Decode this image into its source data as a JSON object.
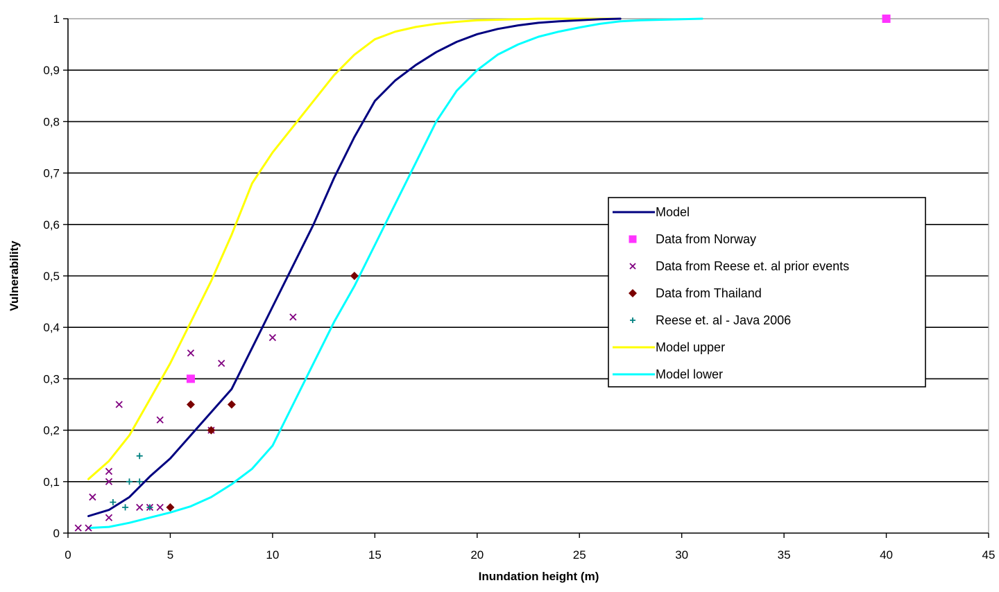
{
  "chart_data": {
    "type": "line",
    "title": "",
    "xlabel": "Inundation height (m)",
    "ylabel": "Vulnerability",
    "xlim": [
      0,
      45
    ],
    "ylim": [
      0,
      1
    ],
    "x_ticks": [
      0,
      5,
      10,
      15,
      20,
      25,
      30,
      35,
      40,
      45
    ],
    "x_tick_labels": [
      "0",
      "5",
      "10",
      "15",
      "20",
      "25",
      "30",
      "35",
      "40",
      "45"
    ],
    "y_ticks": [
      0,
      0.1,
      0.2,
      0.3,
      0.4,
      0.5,
      0.6,
      0.7,
      0.8,
      0.9,
      1
    ],
    "y_tick_labels": [
      "0",
      "0,1",
      "0,2",
      "0,3",
      "0,4",
      "0,5",
      "0,6",
      "0,7",
      "0,8",
      "0,9",
      "1"
    ],
    "grid": "horizontal",
    "legend_position": "right",
    "series": [
      {
        "name": "Model",
        "kind": "line",
        "color": "#000080",
        "x": [
          1,
          2,
          3,
          4,
          5,
          6,
          7,
          8,
          9,
          10,
          11,
          12,
          13,
          14,
          15,
          16,
          17,
          18,
          19,
          20,
          21,
          22,
          23,
          24,
          25,
          26,
          27
        ],
        "y": [
          0.033,
          0.045,
          0.07,
          0.11,
          0.145,
          0.19,
          0.235,
          0.28,
          0.36,
          0.44,
          0.52,
          0.6,
          0.69,
          0.77,
          0.84,
          0.88,
          0.91,
          0.935,
          0.955,
          0.97,
          0.98,
          0.987,
          0.992,
          0.995,
          0.997,
          0.999,
          1.0
        ]
      },
      {
        "name": "Model upper",
        "kind": "line",
        "color": "#ffff00",
        "x": [
          1,
          2,
          3,
          4,
          5,
          6,
          7,
          8,
          9,
          10,
          11,
          12,
          13,
          14,
          15,
          16,
          17,
          18,
          19,
          20,
          21,
          22,
          23,
          24,
          27
        ],
        "y": [
          0.105,
          0.14,
          0.19,
          0.26,
          0.33,
          0.41,
          0.49,
          0.58,
          0.68,
          0.74,
          0.79,
          0.84,
          0.89,
          0.93,
          0.96,
          0.975,
          0.984,
          0.99,
          0.994,
          0.997,
          0.998,
          0.999,
          1.0,
          1.0,
          1.0
        ]
      },
      {
        "name": "Model lower",
        "kind": "line",
        "color": "#00ffff",
        "x": [
          1,
          2,
          3,
          4,
          5,
          6,
          7,
          8,
          9,
          10,
          11,
          12,
          13,
          14,
          15,
          16,
          17,
          18,
          19,
          20,
          21,
          22,
          23,
          24,
          25,
          26,
          27,
          28,
          30,
          31
        ],
        "y": [
          0.01,
          0.012,
          0.02,
          0.03,
          0.04,
          0.052,
          0.07,
          0.095,
          0.125,
          0.17,
          0.25,
          0.33,
          0.41,
          0.48,
          0.56,
          0.64,
          0.72,
          0.8,
          0.86,
          0.9,
          0.93,
          0.95,
          0.965,
          0.975,
          0.983,
          0.99,
          0.995,
          0.997,
          0.999,
          1.0
        ]
      },
      {
        "name": "Data from Norway",
        "kind": "scatter",
        "marker": "square",
        "color": "#ff33ff",
        "x": [
          6,
          40
        ],
        "y": [
          0.3,
          1.0
        ]
      },
      {
        "name": "Data from Reese et. al prior events",
        "kind": "scatter",
        "marker": "x",
        "color": "#800080",
        "x": [
          0.5,
          1,
          1.2,
          2,
          2,
          2,
          2.5,
          3.5,
          4,
          4.5,
          4.5,
          6,
          7,
          7.5,
          10,
          11
        ],
        "y": [
          0.01,
          0.01,
          0.07,
          0.12,
          0.1,
          0.03,
          0.25,
          0.05,
          0.05,
          0.05,
          0.22,
          0.35,
          0.2,
          0.33,
          0.38,
          0.42
        ]
      },
      {
        "name": "Data from Thailand",
        "kind": "scatter",
        "marker": "diamond",
        "color": "#7a0000",
        "x": [
          5,
          6,
          7,
          8,
          14
        ],
        "y": [
          0.05,
          0.25,
          0.2,
          0.25,
          0.5
        ]
      },
      {
        "name": "Reese et. al - Java 2006",
        "kind": "scatter",
        "marker": "plus",
        "color": "#008080",
        "x": [
          2.2,
          2.8,
          3,
          3.5,
          3.5,
          4
        ],
        "y": [
          0.06,
          0.05,
          0.1,
          0.15,
          0.1,
          0.05
        ]
      }
    ],
    "legend_order": [
      "Model",
      "Data from Norway",
      "Data from Reese et. al prior events",
      "Data from Thailand",
      "Reese et. al - Java 2006",
      "Model upper",
      "Model lower"
    ]
  }
}
